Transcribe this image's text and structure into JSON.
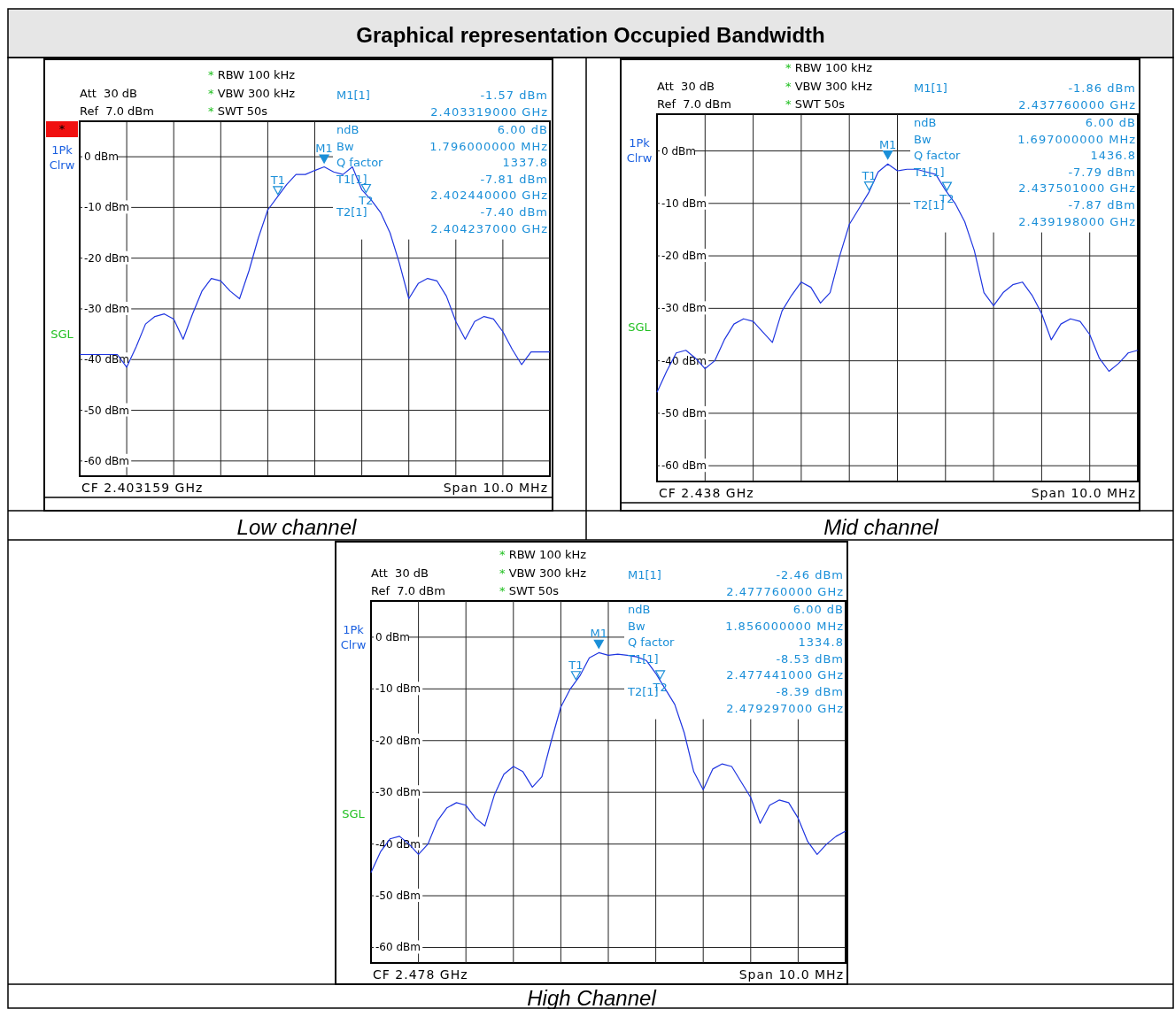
{
  "chart_data": [
    {
      "type": "line",
      "title": "Graphical representation Occupied Bandwidth",
      "xlabel": "Low channel",
      "categories": [
        null,
        null,
        null,
        null,
        null,
        null,
        null,
        null,
        null,
        null,
        null,
        null,
        null,
        null,
        null,
        null,
        null,
        null,
        null,
        null,
        null,
        null,
        null,
        null,
        null,
        null,
        null,
        null,
        null,
        null,
        null,
        null,
        null,
        null,
        null,
        null,
        null,
        null,
        null,
        null,
        null,
        null,
        null,
        null,
        null,
        null,
        null,
        null,
        null,
        null,
        null
      ],
      "series": [
        {
          "color": "#1f35e0",
          "values": [
            -39,
            -39,
            -39,
            -39,
            -39,
            -41.5,
            -37.5,
            -33,
            -31.5,
            -31,
            -32,
            -36,
            -31,
            -26.5,
            -24,
            -24.5,
            -26.5,
            -28,
            -22.5,
            -16,
            -10.5,
            -8,
            -5.5,
            -3.5,
            -3.5,
            -2.7,
            -2,
            -3,
            -3.5,
            -2,
            -6.5,
            -8.5,
            -11,
            -15,
            -21,
            -28,
            -25,
            -24,
            -24.5,
            -27.5,
            -32.5,
            -36,
            -32.5,
            -31.5,
            -32,
            -34.5,
            -38,
            -41,
            -38.5,
            -38.5,
            -38.5
          ]
        }
      ],
      "ylim": [
        -63,
        7
      ],
      "yticks": [
        {
          "value": -60,
          "label": "-60 dBm"
        },
        {
          "value": -50,
          "label": "-50 dBm"
        },
        {
          "value": -40,
          "label": "-40 dBm"
        },
        {
          "value": -30,
          "label": "-30 dBm"
        },
        {
          "value": -20,
          "label": "-20 dBm"
        },
        {
          "value": -10,
          "label": "-10 dBm"
        },
        {
          "value": 0,
          "label": "0 dBm"
        }
      ],
      "grid": true,
      "tick_labels": "y",
      "annotations": [
        "Att  30 dB",
        "Ref  7.0 dBm",
        "* RBW 100 kHz",
        "* VBW 300 kHz",
        "* SWT 50s",
        "M1[1]",
        "-1.57 dBm",
        "2.403319000 GHz",
        "ndB",
        "6.00 dB",
        "Bw",
        "1.796000000 MHz",
        "Q factor",
        "1337.8",
        "T1[1]",
        "-7.81 dBm",
        "2.402440000 GHz",
        "T2[1]",
        "-7.40 dBm",
        "2.404237000 GHz",
        "1Pk",
        "Clrw",
        "SGL",
        "CF 2.403159 GHz",
        "Span 10.0 MHz",
        {
          "text": "M1",
          "y": -1.57
        },
        {
          "text": "T1",
          "y": -7.81
        },
        {
          "text": "T2",
          "y": -7.4
        },
        "*"
      ]
    },
    {
      "type": "line",
      "xlabel": "Mid channel",
      "categories": [
        null,
        null,
        null,
        null,
        null,
        null,
        null,
        null,
        null,
        null,
        null,
        null,
        null,
        null,
        null,
        null,
        null,
        null,
        null,
        null,
        null,
        null,
        null,
        null,
        null,
        null,
        null,
        null,
        null,
        null,
        null,
        null,
        null,
        null,
        null,
        null,
        null,
        null,
        null,
        null,
        null,
        null,
        null,
        null,
        null,
        null,
        null,
        null,
        null,
        null,
        null
      ],
      "series": [
        {
          "color": "#1f35e0",
          "values": [
            -46,
            -42,
            -38.5,
            -38,
            -39.5,
            -41.5,
            -40,
            -36,
            -33,
            -32,
            -32.5,
            -34.5,
            -36.5,
            -30.5,
            -27.5,
            -25,
            -26,
            -29,
            -27,
            -20,
            -14,
            -11,
            -8,
            -4,
            -2.5,
            -3.8,
            -3.5,
            -3.5,
            -4,
            -4.5,
            -7.5,
            -10,
            -13.5,
            -19,
            -27,
            -29.5,
            -27,
            -25.5,
            -25,
            -27.5,
            -31,
            -36,
            -33,
            -32,
            -32.5,
            -35,
            -39.5,
            -42,
            -40.5,
            -38.5,
            -38
          ]
        }
      ],
      "ylim": [
        -63,
        7
      ],
      "yticks": [
        {
          "value": -60,
          "label": "-60 dBm"
        },
        {
          "value": -50,
          "label": "-50 dBm"
        },
        {
          "value": -40,
          "label": "-40 dBm"
        },
        {
          "value": -30,
          "label": "-30 dBm"
        },
        {
          "value": -20,
          "label": "-20 dBm"
        },
        {
          "value": -10,
          "label": "-10 dBm"
        },
        {
          "value": 0,
          "label": "0 dBm"
        }
      ],
      "grid": true,
      "tick_labels": "y",
      "annotations": [
        "Att  30 dB",
        "Ref  7.0 dBm",
        "* RBW 100 kHz",
        "* VBW 300 kHz",
        "* SWT 50s",
        "M1[1]",
        "-1.86 dBm",
        "2.437760000 GHz",
        "ndB",
        "6.00 dB",
        "Bw",
        "1.697000000 MHz",
        "Q factor",
        "1436.8",
        "T1[1]",
        "-7.79 dBm",
        "2.437501000 GHz",
        "T2[1]",
        "-7.87 dBm",
        "2.439198000 GHz",
        "1Pk",
        "Clrw",
        "SGL",
        "CF 2.438 GHz",
        "Span 10.0 MHz",
        {
          "text": "M1",
          "y": -1.86
        },
        {
          "text": "T1",
          "y": -7.79
        },
        {
          "text": "T2",
          "y": -7.87
        }
      ]
    },
    {
      "type": "line",
      "xlabel": "High Channel",
      "categories": [
        null,
        null,
        null,
        null,
        null,
        null,
        null,
        null,
        null,
        null,
        null,
        null,
        null,
        null,
        null,
        null,
        null,
        null,
        null,
        null,
        null,
        null,
        null,
        null,
        null,
        null,
        null,
        null,
        null,
        null,
        null,
        null,
        null,
        null,
        null,
        null,
        null,
        null,
        null,
        null,
        null,
        null,
        null,
        null,
        null,
        null,
        null,
        null,
        null,
        null,
        null
      ],
      "series": [
        {
          "color": "#1f35e0",
          "values": [
            -45.5,
            -41.5,
            -39,
            -38.5,
            -40,
            -42,
            -40,
            -35.5,
            -33,
            -32,
            -32.5,
            -35,
            -36.5,
            -30.5,
            -26.5,
            -25,
            -26,
            -29,
            -27,
            -20,
            -13.5,
            -10,
            -7.5,
            -4,
            -3,
            -3.5,
            -3.3,
            -3.5,
            -3.8,
            -4.5,
            -7,
            -10,
            -13,
            -18.5,
            -26,
            -29.5,
            -25.5,
            -24.5,
            -25,
            -28,
            -31,
            -36,
            -32.5,
            -31.5,
            -32,
            -35,
            -39.5,
            -42,
            -40,
            -38.5,
            -37.5
          ]
        }
      ],
      "ylim": [
        -63,
        7
      ],
      "yticks": [
        {
          "value": -60,
          "label": "-60 dBm"
        },
        {
          "value": -50,
          "label": "-50 dBm"
        },
        {
          "value": -40,
          "label": "-40 dBm"
        },
        {
          "value": -30,
          "label": "-30 dBm"
        },
        {
          "value": -20,
          "label": "-20 dBm"
        },
        {
          "value": -10,
          "label": "-10 dBm"
        },
        {
          "value": 0,
          "label": "0 dBm"
        }
      ],
      "grid": true,
      "tick_labels": "y",
      "annotations": [
        "Att  30 dB",
        "Ref  7.0 dBm",
        "* RBW 100 kHz",
        "* VBW 300 kHz",
        "* SWT 50s",
        "M1[1]",
        "-2.46 dBm",
        "2.477760000 GHz",
        "ndB",
        "6.00 dB",
        "Bw",
        "1.856000000 MHz",
        "Q factor",
        "1334.8",
        "T1[1]",
        "-8.53 dBm",
        "2.477441000 GHz",
        "T2[1]",
        "-8.39 dBm",
        "2.479297000 GHz",
        "1Pk",
        "Clrw",
        "SGL",
        "CF 2.478 GHz",
        "Span 10.0 MHz",
        {
          "text": "M1",
          "y": -2.46
        },
        {
          "text": "T1",
          "y": -8.53
        },
        {
          "text": "T2",
          "y": -8.39
        }
      ]
    }
  ]
}
